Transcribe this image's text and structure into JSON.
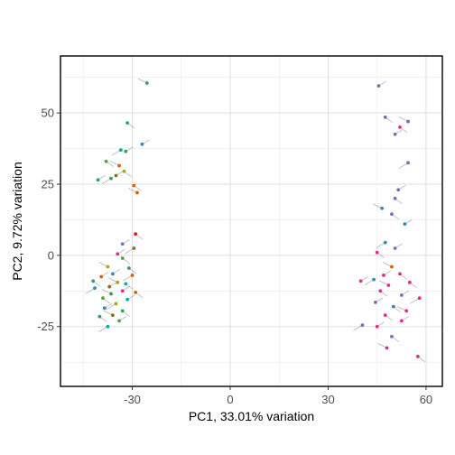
{
  "chart_data": {
    "type": "scatter",
    "title": "",
    "xlabel": "PC1, 33.01% variation",
    "ylabel": "PC2, 9.72% variation",
    "xlim": [
      -52,
      65
    ],
    "ylim": [
      -46,
      70
    ],
    "x_ticks": [
      -30,
      0,
      30,
      60
    ],
    "x_tick_labels": [
      "-30",
      "0",
      "30",
      "60"
    ],
    "y_ticks": [
      -25,
      0,
      25,
      50
    ],
    "y_tick_labels": [
      "-25",
      "0",
      "25",
      "50"
    ],
    "grid": true,
    "legend": "none",
    "point_labels_note": "point labels are sample ids too small to read",
    "points": [
      {
        "x": -25.5,
        "y": 60.5,
        "color": "#2ca25f"
      },
      {
        "x": -31.5,
        "y": 46.5,
        "color": "#2ca25f"
      },
      {
        "x": -27.0,
        "y": 39.0,
        "color": "#3288bd"
      },
      {
        "x": -33.5,
        "y": 37.0,
        "color": "#00a9a5"
      },
      {
        "x": -32.0,
        "y": 36.5,
        "color": "#2ca25f"
      },
      {
        "x": -38.0,
        "y": 33.0,
        "color": "#5e9e2e"
      },
      {
        "x": -34.0,
        "y": 31.5,
        "color": "#d95f02"
      },
      {
        "x": -32.5,
        "y": 29.5,
        "color": "#a6a61d"
      },
      {
        "x": -35.0,
        "y": 28.0,
        "color": "#8c6d1f"
      },
      {
        "x": -36.5,
        "y": 27.0,
        "color": "#2ca25f"
      },
      {
        "x": -40.5,
        "y": 26.5,
        "color": "#2ca25f"
      },
      {
        "x": -29.5,
        "y": 24.5,
        "color": "#d95f02"
      },
      {
        "x": -28.5,
        "y": 22.0,
        "color": "#d95f02"
      },
      {
        "x": -29.0,
        "y": 7.5,
        "color": "#e41a1c"
      },
      {
        "x": -33.0,
        "y": 4.0,
        "color": "#7570b3"
      },
      {
        "x": -29.5,
        "y": 2.5,
        "color": "#8c6d1f"
      },
      {
        "x": -34.5,
        "y": 0.5,
        "color": "#e7298a"
      },
      {
        "x": -33.0,
        "y": -1.0,
        "color": "#5e9e2e"
      },
      {
        "x": -37.5,
        "y": -4.0,
        "color": "#a6a61d"
      },
      {
        "x": -31.0,
        "y": -4.5,
        "color": "#2ca25f"
      },
      {
        "x": -36.0,
        "y": -6.5,
        "color": "#3288bd"
      },
      {
        "x": -30.0,
        "y": -7.0,
        "color": "#d95f02"
      },
      {
        "x": -39.5,
        "y": -7.5,
        "color": "#d95f02"
      },
      {
        "x": -42.0,
        "y": -9.0,
        "color": "#2ca25f"
      },
      {
        "x": -34.5,
        "y": -9.5,
        "color": "#a6a61d"
      },
      {
        "x": -32.0,
        "y": -10.0,
        "color": "#00a9a5"
      },
      {
        "x": -37.0,
        "y": -11.0,
        "color": "#8c6d1f"
      },
      {
        "x": -41.5,
        "y": -11.5,
        "color": "#3288bd"
      },
      {
        "x": -33.0,
        "y": -12.5,
        "color": "#e7298a"
      },
      {
        "x": -29.0,
        "y": -13.0,
        "color": "#d95f02"
      },
      {
        "x": -36.5,
        "y": -13.5,
        "color": "#2ca25f"
      },
      {
        "x": -39.0,
        "y": -15.0,
        "color": "#5e9e2e"
      },
      {
        "x": -31.5,
        "y": -15.5,
        "color": "#00a9a5"
      },
      {
        "x": -35.0,
        "y": -17.0,
        "color": "#a6a61d"
      },
      {
        "x": -38.5,
        "y": -18.5,
        "color": "#3288bd"
      },
      {
        "x": -33.0,
        "y": -19.5,
        "color": "#2ca25f"
      },
      {
        "x": -36.0,
        "y": -21.0,
        "color": "#8c6d1f"
      },
      {
        "x": -40.0,
        "y": -21.5,
        "color": "#2ca25f"
      },
      {
        "x": -34.0,
        "y": -23.0,
        "color": "#5e9e2e"
      },
      {
        "x": -37.5,
        "y": -25.0,
        "color": "#00a9a5"
      },
      {
        "x": 45.5,
        "y": 59.5,
        "color": "#7570b3"
      },
      {
        "x": 47.5,
        "y": 48.5,
        "color": "#7570b3"
      },
      {
        "x": 54.5,
        "y": 47.0,
        "color": "#7570b3"
      },
      {
        "x": 52.0,
        "y": 45.0,
        "color": "#e7298a"
      },
      {
        "x": 50.5,
        "y": 42.5,
        "color": "#7570b3"
      },
      {
        "x": 54.5,
        "y": 32.5,
        "color": "#7570b3"
      },
      {
        "x": 51.5,
        "y": 23.0,
        "color": "#7570b3"
      },
      {
        "x": 50.5,
        "y": 20.0,
        "color": "#7570b3"
      },
      {
        "x": 46.5,
        "y": 16.5,
        "color": "#3288bd"
      },
      {
        "x": 49.5,
        "y": 14.5,
        "color": "#7570b3"
      },
      {
        "x": 53.5,
        "y": 11.0,
        "color": "#3288bd"
      },
      {
        "x": 47.5,
        "y": 4.5,
        "color": "#3288bd"
      },
      {
        "x": 50.5,
        "y": 2.5,
        "color": "#7570b3"
      },
      {
        "x": 45.0,
        "y": 1.0,
        "color": "#e7298a"
      },
      {
        "x": 49.5,
        "y": -4.0,
        "color": "#d95f02"
      },
      {
        "x": 52.0,
        "y": -6.5,
        "color": "#e7298a"
      },
      {
        "x": 47.0,
        "y": -7.0,
        "color": "#e7298a"
      },
      {
        "x": 44.0,
        "y": -8.5,
        "color": "#3288bd"
      },
      {
        "x": 40.0,
        "y": -9.0,
        "color": "#e7298a"
      },
      {
        "x": 55.0,
        "y": -9.5,
        "color": "#e7298a"
      },
      {
        "x": 48.5,
        "y": -10.5,
        "color": "#e7298a"
      },
      {
        "x": 46.0,
        "y": -12.5,
        "color": "#e7298a"
      },
      {
        "x": 52.5,
        "y": -14.0,
        "color": "#7570b3"
      },
      {
        "x": 58.0,
        "y": -15.0,
        "color": "#e7298a"
      },
      {
        "x": 44.5,
        "y": -16.5,
        "color": "#7570b3"
      },
      {
        "x": 50.0,
        "y": -18.0,
        "color": "#3288bd"
      },
      {
        "x": 54.0,
        "y": -19.5,
        "color": "#e7298a"
      },
      {
        "x": 47.5,
        "y": -21.0,
        "color": "#e7298a"
      },
      {
        "x": 52.5,
        "y": -23.0,
        "color": "#e7298a"
      },
      {
        "x": 40.5,
        "y": -24.5,
        "color": "#7570b3"
      },
      {
        "x": 45.0,
        "y": -25.0,
        "color": "#e7298a"
      },
      {
        "x": 49.5,
        "y": -28.5,
        "color": "#7570b3"
      },
      {
        "x": 48.0,
        "y": -32.5,
        "color": "#e7298a"
      },
      {
        "x": 57.5,
        "y": -35.5,
        "color": "#e7298a"
      }
    ]
  }
}
